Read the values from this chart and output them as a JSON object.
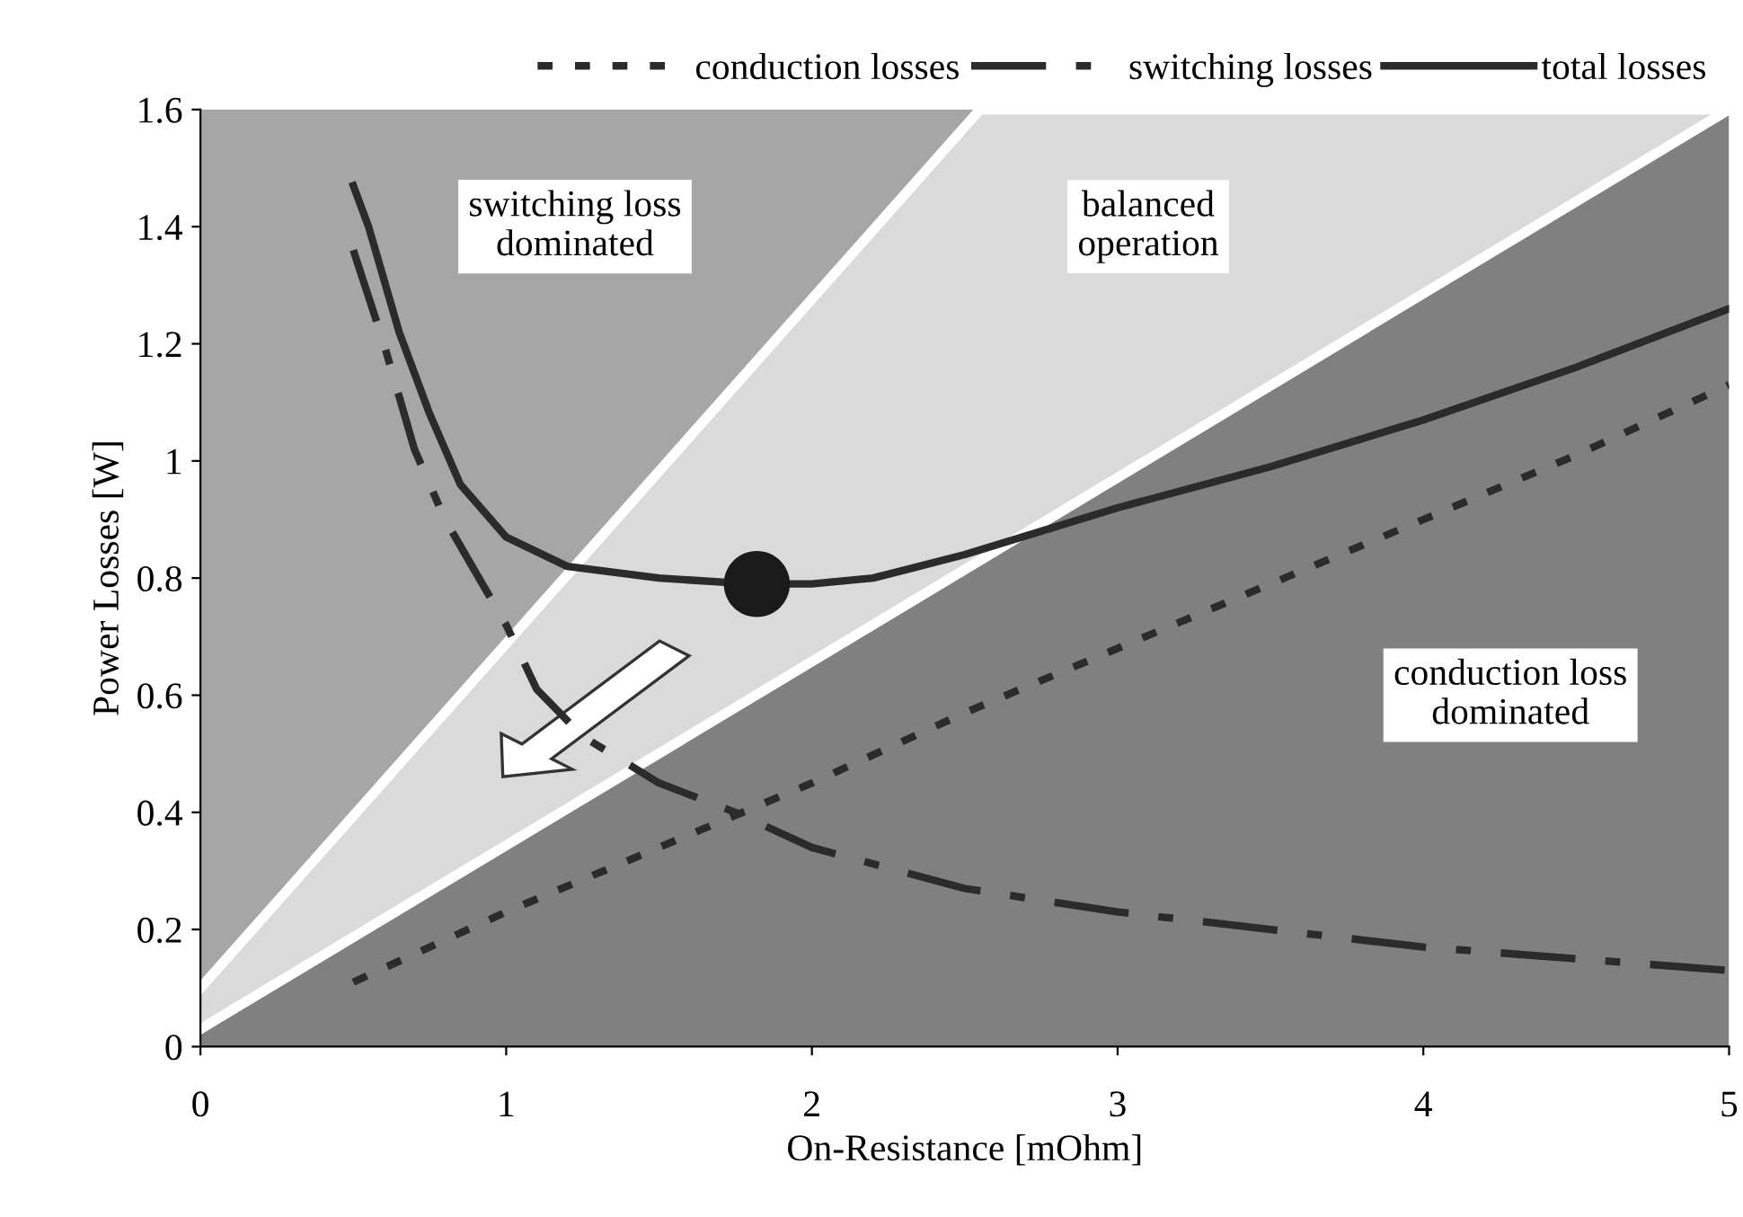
{
  "chart_data": {
    "type": "line",
    "xlabel": "On-Resistance [mOhm]",
    "ylabel": "Power Losses [W]",
    "xlim": [
      0,
      5
    ],
    "ylim": [
      0,
      1.6
    ],
    "xticks": [
      0,
      1,
      2,
      3,
      4,
      5
    ],
    "yticks": [
      0,
      0.2,
      0.4,
      0.6,
      0.8,
      1,
      1.2,
      1.4,
      1.6
    ],
    "grid": false,
    "legend": "top",
    "marker": "none",
    "stacked": true,
    "series": [
      {
        "type": "area",
        "color": "#808080",
        "line_style": "solid",
        "x": [
          0,
          2.55,
          5
        ],
        "values": [
          0.03,
          0.83,
          1.6
        ]
      },
      {
        "type": "area",
        "color": "#dadada",
        "line_style": "solid",
        "x": [
          0,
          2.55,
          5
        ],
        "values": [
          0.07,
          0.77,
          0
        ]
      },
      {
        "type": "area",
        "color": "#a6a6a6",
        "x": [
          0,
          2.55,
          5
        ],
        "values": [
          1.5,
          0,
          0
        ]
      },
      {
        "name": "conduction losses",
        "color": "#2b2b2b",
        "line_style": "dotted",
        "x": [
          0.5,
          1.0,
          1.5,
          2.0,
          2.5,
          3.0,
          3.5,
          4.0,
          4.5,
          5.0
        ],
        "values": [
          0.11,
          0.23,
          0.34,
          0.45,
          0.57,
          0.68,
          0.79,
          0.9,
          1.01,
          1.13
        ]
      },
      {
        "name": "switching losses",
        "color": "#2b2b2b",
        "line_style": "dashed",
        "x": [
          0.5,
          0.6,
          0.7,
          0.8,
          1.0,
          1.1,
          1.25,
          1.5,
          1.75,
          2.0,
          2.5,
          3.0,
          3.5,
          4.0,
          4.5,
          5.0
        ],
        "values": [
          1.36,
          1.2,
          1.02,
          0.9,
          0.72,
          0.61,
          0.53,
          0.45,
          0.4,
          0.34,
          0.27,
          0.23,
          0.2,
          0.17,
          0.15,
          0.13
        ]
      },
      {
        "name": "total losses",
        "color": "#2b2b2b",
        "line_style": "solid",
        "x": [
          0.5,
          0.55,
          0.65,
          0.75,
          0.85,
          1.0,
          1.2,
          1.5,
          1.8,
          2.0,
          2.2,
          2.5,
          3.0,
          3.5,
          4.0,
          4.5,
          5.0
        ],
        "values": [
          1.47,
          1.4,
          1.22,
          1.08,
          0.96,
          0.87,
          0.82,
          0.8,
          0.79,
          0.79,
          0.8,
          0.84,
          0.92,
          0.99,
          1.07,
          1.16,
          1.26
        ]
      },
      {
        "type": "scatter",
        "color": "#1a1a1a",
        "marker": "circle",
        "x": [
          1.82
        ],
        "values": [
          0.79
        ]
      }
    ],
    "annotations": [
      "switching loss\ndominated",
      "balanced\noperation",
      "conduction loss\ndominated"
    ]
  }
}
